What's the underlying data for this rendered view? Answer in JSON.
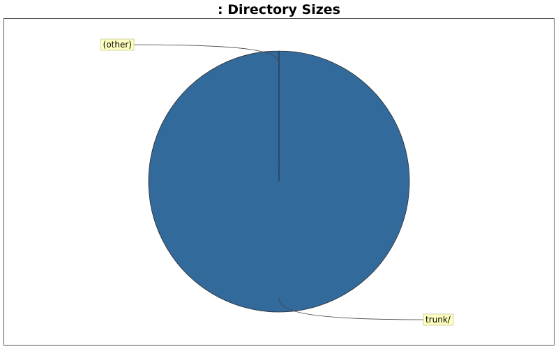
{
  "chart_data": {
    "type": "pie",
    "title": ": Directory Sizes",
    "slices": [
      {
        "label": "trunk/",
        "value": 99.99,
        "color": "#336a9c"
      },
      {
        "label": "(other)",
        "value": 0.01,
        "color": "#336a9c"
      }
    ],
    "legend": "none"
  }
}
